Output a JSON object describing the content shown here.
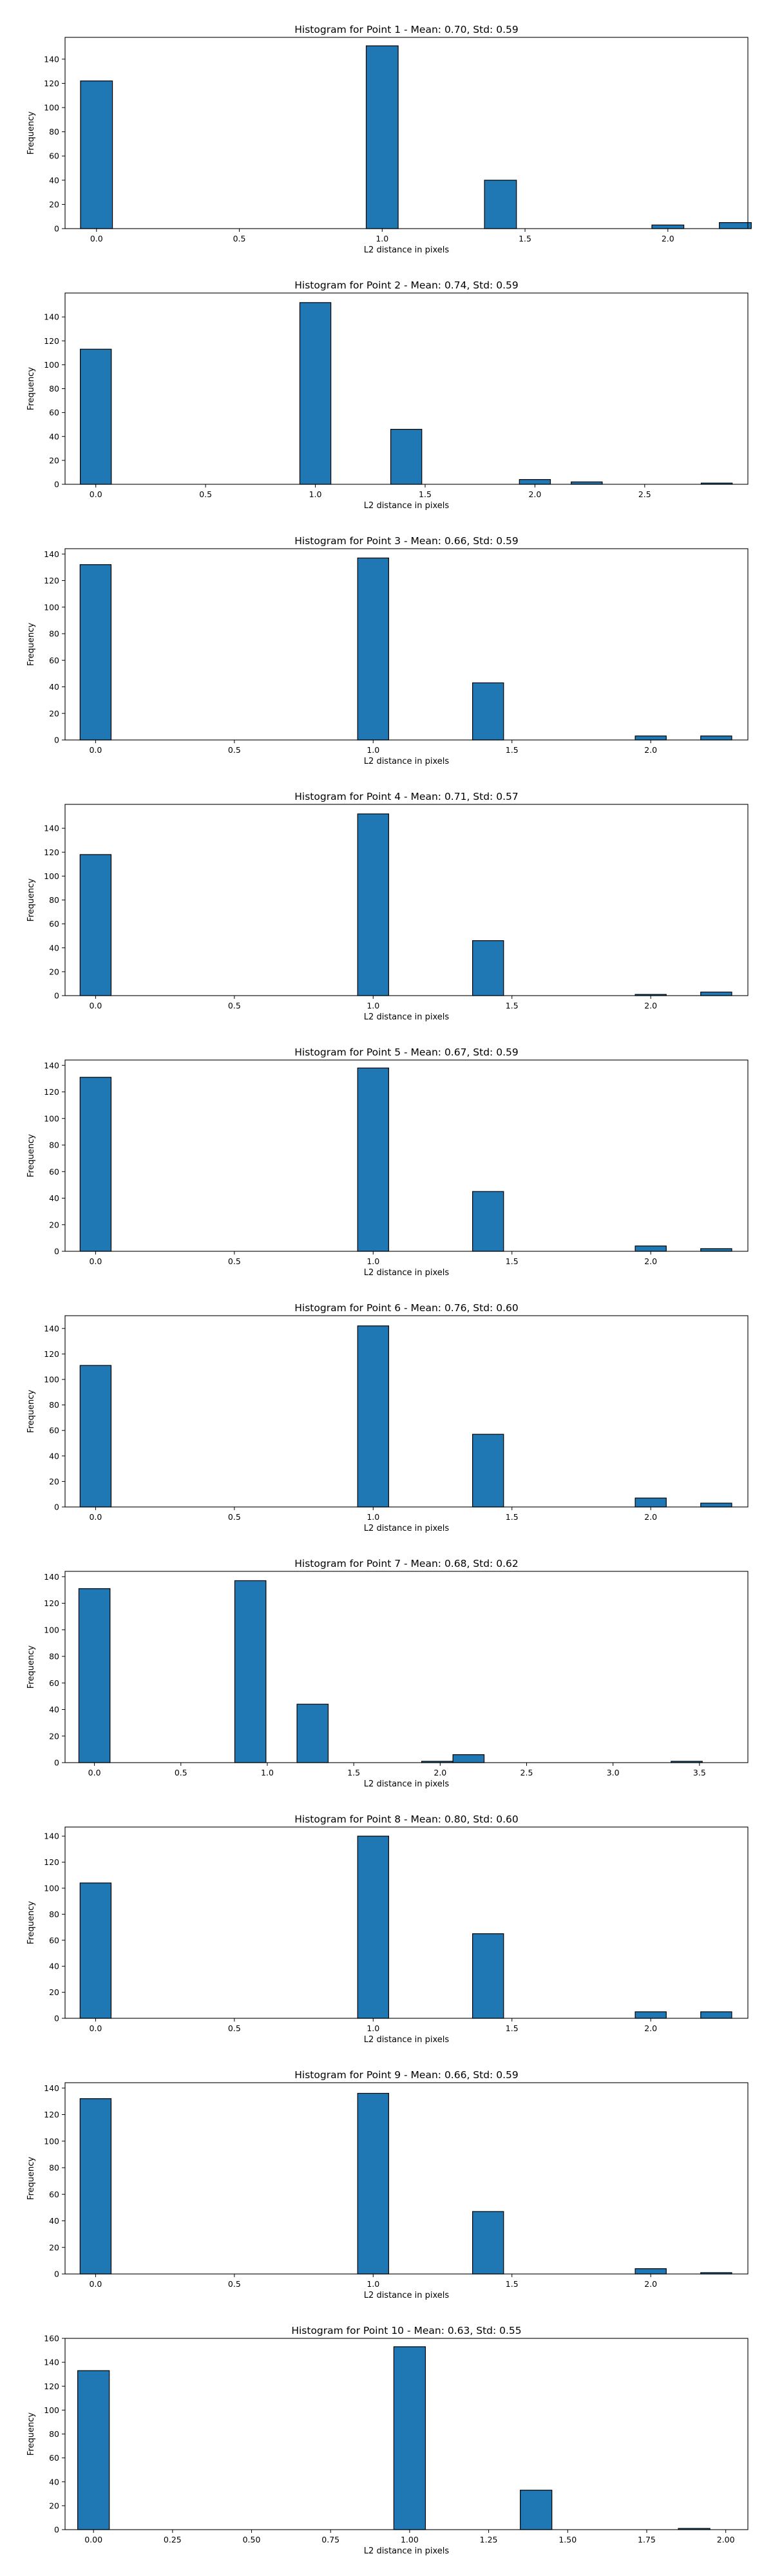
{
  "chart_data": [
    {
      "type": "bar",
      "title": "Histogram for Point 1 - Mean: 0.70, Std: 0.59",
      "xlabel": "L2 distance in pixels",
      "ylabel": "Frequency",
      "xlim": [
        -0.11,
        2.28
      ],
      "ylim": [
        0,
        158
      ],
      "xticks": [
        "0.0",
        "0.5",
        "1.0",
        "1.5",
        "2.0"
      ],
      "yticks": [
        "0",
        "20",
        "40",
        "60",
        "80",
        "100",
        "120",
        "140"
      ],
      "bin_width": 0.1118,
      "bins": [
        {
          "x": 0.0,
          "value": 122
        },
        {
          "x": 1.0,
          "value": 151
        },
        {
          "x": 1.414,
          "value": 40
        },
        {
          "x": 2.0,
          "value": 3
        },
        {
          "x": 2.236,
          "value": 5
        }
      ]
    },
    {
      "type": "bar",
      "title": "Histogram for Point 2 - Mean: 0.74, Std: 0.59",
      "xlabel": "L2 distance in pixels",
      "ylabel": "Frequency",
      "xlim": [
        -0.14,
        2.97
      ],
      "ylim": [
        0,
        160
      ],
      "xticks": [
        "0.0",
        "0.5",
        "1.0",
        "1.5",
        "2.0",
        "2.5"
      ],
      "yticks": [
        "0",
        "20",
        "40",
        "60",
        "80",
        "100",
        "120",
        "140"
      ],
      "bin_width": 0.1414,
      "bins": [
        {
          "x": 0.0,
          "value": 113
        },
        {
          "x": 1.0,
          "value": 152
        },
        {
          "x": 1.414,
          "value": 46
        },
        {
          "x": 2.0,
          "value": 4
        },
        {
          "x": 2.236,
          "value": 2
        },
        {
          "x": 2.828,
          "value": 1
        }
      ]
    },
    {
      "type": "bar",
      "title": "Histogram for Point 3 - Mean: 0.66, Std: 0.59",
      "xlabel": "L2 distance in pixels",
      "ylabel": "Frequency",
      "xlim": [
        -0.11,
        2.35
      ],
      "ylim": [
        0,
        144
      ],
      "xticks": [
        "0.0",
        "0.5",
        "1.0",
        "1.5",
        "2.0"
      ],
      "yticks": [
        "0",
        "20",
        "40",
        "60",
        "80",
        "100",
        "120",
        "140"
      ],
      "bin_width": 0.1118,
      "bins": [
        {
          "x": 0.0,
          "value": 132
        },
        {
          "x": 1.0,
          "value": 137
        },
        {
          "x": 1.414,
          "value": 43
        },
        {
          "x": 2.0,
          "value": 3
        },
        {
          "x": 2.236,
          "value": 3
        }
      ]
    },
    {
      "type": "bar",
      "title": "Histogram for Point 4 - Mean: 0.71, Std: 0.57",
      "xlabel": "L2 distance in pixels",
      "ylabel": "Frequency",
      "xlim": [
        -0.11,
        2.35
      ],
      "ylim": [
        0,
        160
      ],
      "xticks": [
        "0.0",
        "0.5",
        "1.0",
        "1.5",
        "2.0"
      ],
      "yticks": [
        "0",
        "20",
        "40",
        "60",
        "80",
        "100",
        "120",
        "140"
      ],
      "bin_width": 0.1118,
      "bins": [
        {
          "x": 0.0,
          "value": 118
        },
        {
          "x": 1.0,
          "value": 152
        },
        {
          "x": 1.414,
          "value": 46
        },
        {
          "x": 2.0,
          "value": 1
        },
        {
          "x": 2.236,
          "value": 3
        }
      ]
    },
    {
      "type": "bar",
      "title": "Histogram for Point 5 - Mean: 0.67, Std: 0.59",
      "xlabel": "L2 distance in pixels",
      "ylabel": "Frequency",
      "xlim": [
        -0.11,
        2.35
      ],
      "ylim": [
        0,
        144
      ],
      "xticks": [
        "0.0",
        "0.5",
        "1.0",
        "1.5",
        "2.0"
      ],
      "yticks": [
        "0",
        "20",
        "40",
        "60",
        "80",
        "100",
        "120",
        "140"
      ],
      "bin_width": 0.1118,
      "bins": [
        {
          "x": 0.0,
          "value": 131
        },
        {
          "x": 1.0,
          "value": 138
        },
        {
          "x": 1.414,
          "value": 45
        },
        {
          "x": 2.0,
          "value": 4
        },
        {
          "x": 2.236,
          "value": 2
        }
      ]
    },
    {
      "type": "bar",
      "title": "Histogram for Point 6 - Mean: 0.76, Std: 0.60",
      "xlabel": "L2 distance in pixels",
      "ylabel": "Frequency",
      "xlim": [
        -0.11,
        2.35
      ],
      "ylim": [
        0,
        150
      ],
      "xticks": [
        "0.0",
        "0.5",
        "1.0",
        "1.5",
        "2.0"
      ],
      "yticks": [
        "0",
        "20",
        "40",
        "60",
        "80",
        "100",
        "120",
        "140"
      ],
      "bin_width": 0.1118,
      "bins": [
        {
          "x": 0.0,
          "value": 111
        },
        {
          "x": 1.0,
          "value": 142
        },
        {
          "x": 1.414,
          "value": 57
        },
        {
          "x": 2.0,
          "value": 7
        },
        {
          "x": 2.236,
          "value": 3
        }
      ]
    },
    {
      "type": "bar",
      "title": "Histogram for Point 7 - Mean: 0.68, Std: 0.62",
      "xlabel": "L2 distance in pixels",
      "ylabel": "Frequency",
      "xlim": [
        -0.17,
        3.78
      ],
      "ylim": [
        0,
        144
      ],
      "xticks": [
        "0.0",
        "0.5",
        "1.0",
        "1.5",
        "2.0",
        "2.5",
        "3.0",
        "3.5"
      ],
      "yticks": [
        "0",
        "20",
        "40",
        "60",
        "80",
        "100",
        "120",
        "140"
      ],
      "bin_width": 0.1803,
      "bins": [
        {
          "x": 0.0,
          "value": 131
        },
        {
          "x": 0.902,
          "value": 137
        },
        {
          "x": 1.262,
          "value": 44
        },
        {
          "x": 1.983,
          "value": 1
        },
        {
          "x": 2.164,
          "value": 6
        },
        {
          "x": 3.426,
          "value": 1
        }
      ]
    },
    {
      "type": "bar",
      "title": "Histogram for Point 8 - Mean: 0.80, Std: 0.60",
      "xlabel": "L2 distance in pixels",
      "ylabel": "Frequency",
      "xlim": [
        -0.11,
        2.35
      ],
      "ylim": [
        0,
        147
      ],
      "xticks": [
        "0.0",
        "0.5",
        "1.0",
        "1.5",
        "2.0"
      ],
      "yticks": [
        "0",
        "20",
        "40",
        "60",
        "80",
        "100",
        "120",
        "140"
      ],
      "bin_width": 0.1118,
      "bins": [
        {
          "x": 0.0,
          "value": 104
        },
        {
          "x": 1.0,
          "value": 140
        },
        {
          "x": 1.414,
          "value": 65
        },
        {
          "x": 2.0,
          "value": 5
        },
        {
          "x": 2.236,
          "value": 5
        }
      ]
    },
    {
      "type": "bar",
      "title": "Histogram for Point 9 - Mean: 0.66, Std: 0.59",
      "xlabel": "L2 distance in pixels",
      "ylabel": "Frequency",
      "xlim": [
        -0.11,
        2.35
      ],
      "ylim": [
        0,
        144
      ],
      "xticks": [
        "0.0",
        "0.5",
        "1.0",
        "1.5",
        "2.0"
      ],
      "yticks": [
        "0",
        "20",
        "40",
        "60",
        "80",
        "100",
        "120",
        "140"
      ],
      "bin_width": 0.1118,
      "bins": [
        {
          "x": 0.0,
          "value": 132
        },
        {
          "x": 1.0,
          "value": 136
        },
        {
          "x": 1.414,
          "value": 47
        },
        {
          "x": 2.0,
          "value": 4
        },
        {
          "x": 2.236,
          "value": 1
        }
      ]
    },
    {
      "type": "bar",
      "title": "Histogram for Point 10 - Mean: 0.63, Std: 0.55",
      "xlabel": "L2 distance in pixels",
      "ylabel": "Frequency",
      "xlim": [
        -0.09,
        2.07
      ],
      "ylim": [
        0,
        160
      ],
      "xticks": [
        "0.00",
        "0.25",
        "0.50",
        "0.75",
        "1.00",
        "1.25",
        "1.50",
        "1.75",
        "2.00"
      ],
      "yticks": [
        "0",
        "20",
        "40",
        "60",
        "80",
        "100",
        "120",
        "140",
        "160"
      ],
      "bin_width": 0.1,
      "bins": [
        {
          "x": 0.0,
          "value": 133
        },
        {
          "x": 1.0,
          "value": 153
        },
        {
          "x": 1.4,
          "value": 33
        },
        {
          "x": 1.9,
          "value": 1
        }
      ]
    }
  ]
}
